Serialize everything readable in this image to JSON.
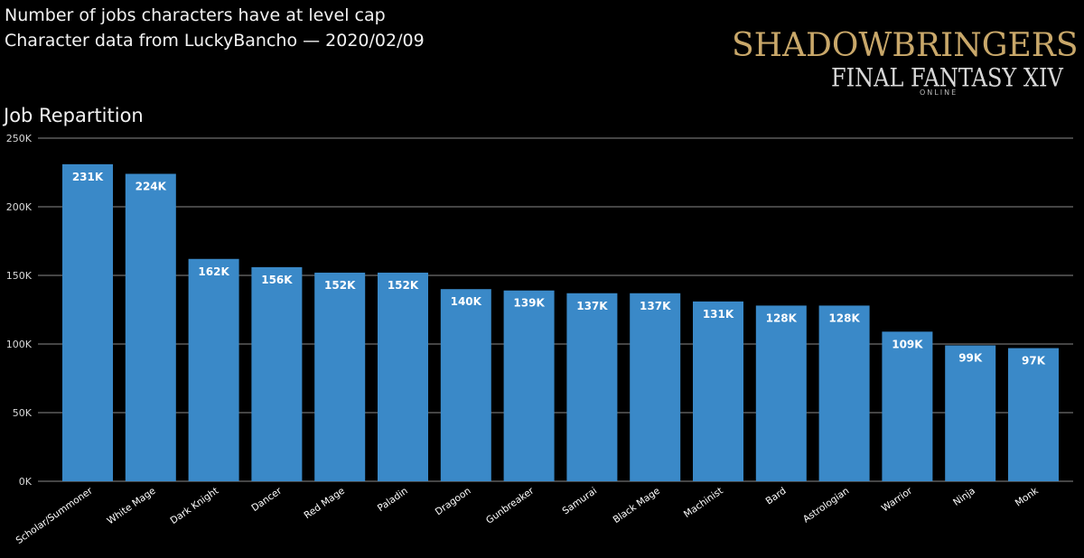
{
  "header": {
    "title": "Number of jobs characters have at level cap",
    "subtitle": "Character data from LuckyBancho — 2020/02/09"
  },
  "logo": {
    "line1": "SHADOWBRINGERS",
    "line2": "FINAL FANTASY XIV",
    "line3": "ONLINE"
  },
  "chart_data": {
    "type": "bar",
    "title": "Job Repartition",
    "categories": [
      "Scholar/Summoner",
      "White Mage",
      "Dark Knight",
      "Dancer",
      "Red Mage",
      "Paladin",
      "Dragoon",
      "Gunbreaker",
      "Samurai",
      "Black Mage",
      "Machinist",
      "Bard",
      "Astrologian",
      "Warrior",
      "Ninja",
      "Monk"
    ],
    "values": [
      231000,
      224000,
      162000,
      156000,
      152000,
      152000,
      140000,
      139000,
      137000,
      137000,
      131000,
      128000,
      128000,
      109000,
      99000,
      97000
    ],
    "data_labels": [
      "231K",
      "224K",
      "162K",
      "156K",
      "152K",
      "152K",
      "140K",
      "139K",
      "137K",
      "137K",
      "131K",
      "128K",
      "128K",
      "109K",
      "99K",
      "97K"
    ],
    "ylim": [
      0,
      250000
    ],
    "yticks": [
      0,
      50000,
      100000,
      150000,
      200000,
      250000
    ],
    "ytick_labels": [
      "0K",
      "50K",
      "100K",
      "150K",
      "200K",
      "250K"
    ],
    "grid": true,
    "bar_color": "#3a89c8",
    "grid_color": "#8a8a8a",
    "background": "#000000"
  }
}
